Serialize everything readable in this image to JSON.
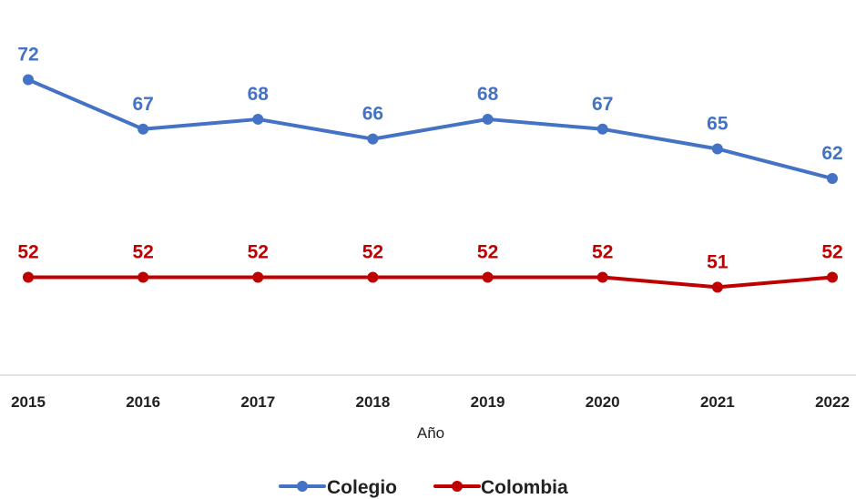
{
  "chart_data": {
    "type": "line",
    "title": "",
    "xlabel": "Año",
    "ylabel": "",
    "categories": [
      "2015",
      "2016",
      "2017",
      "2018",
      "2019",
      "2020",
      "2021",
      "2022"
    ],
    "series": [
      {
        "name": "Colegio",
        "color": "#4472C4",
        "values": [
          72,
          67,
          68,
          66,
          68,
          67,
          65,
          62
        ]
      },
      {
        "name": "Colombia",
        "color": "#C00000",
        "values": [
          52,
          52,
          52,
          52,
          52,
          52,
          51,
          52
        ]
      }
    ],
    "ylim": [
      42,
      75
    ],
    "grid": false,
    "legend": "bottom-center",
    "data_labels": true
  }
}
